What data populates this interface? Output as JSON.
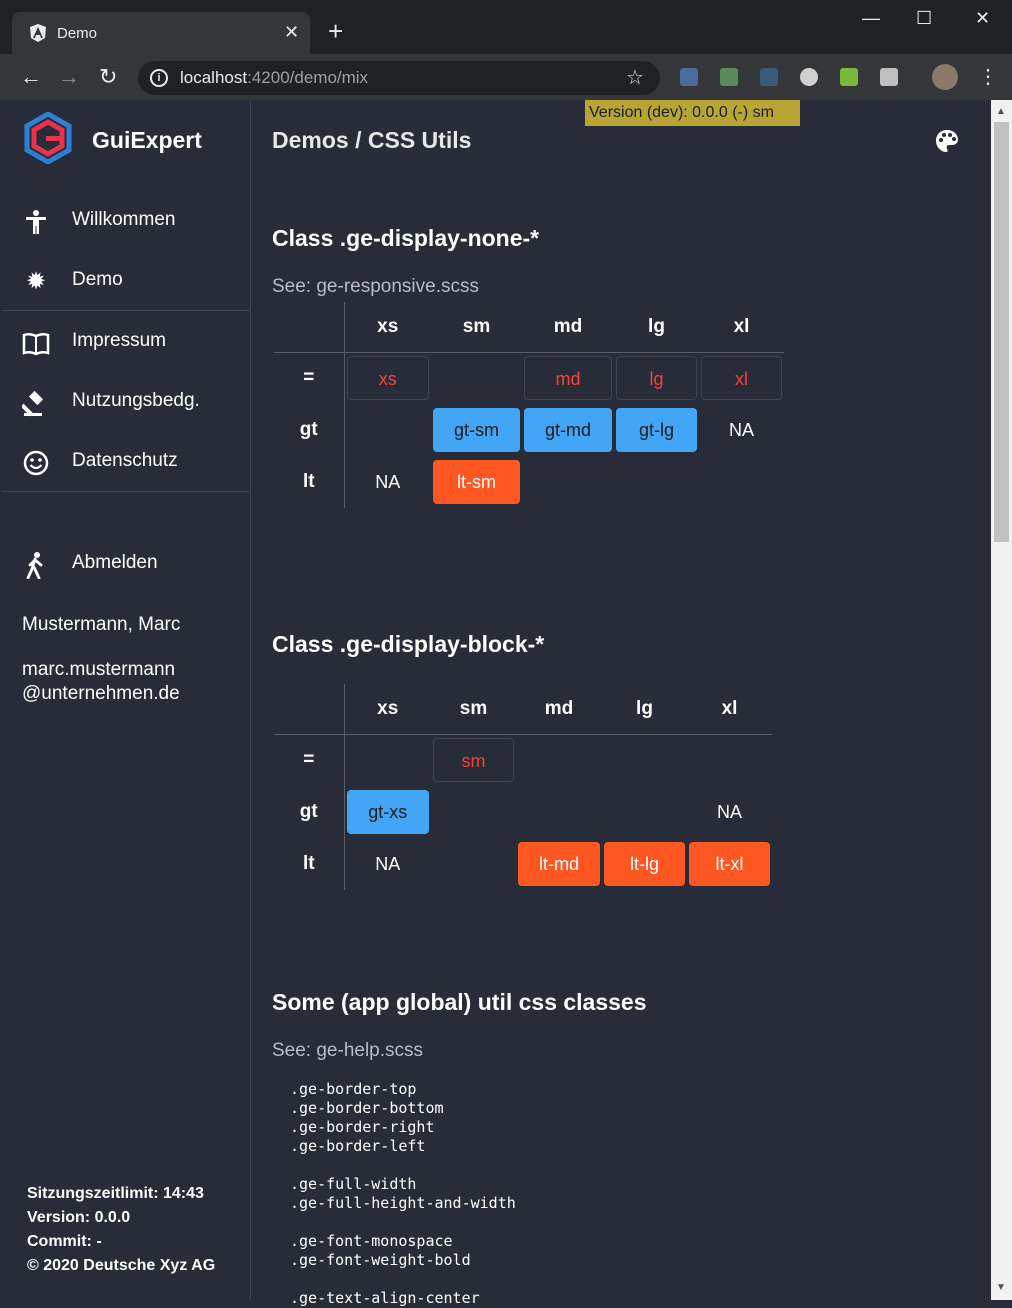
{
  "browser": {
    "tab_title": "Demo",
    "tab_close": "✕",
    "new_tab": "+",
    "url_host": "localhost",
    "url_path": ":4200/demo/mix",
    "minimize": "—",
    "maximize": "☐",
    "close": "✕"
  },
  "app": {
    "brand": "GuiExpert",
    "version_badge": "Version (dev): 0.0.0  (-)   sm",
    "page_title": "Demos / CSS Utils"
  },
  "sidebar": {
    "items": [
      {
        "label": "Willkommen",
        "icon": "accessibility-icon"
      },
      {
        "label": "Demo",
        "icon": "gear-icon"
      },
      {
        "label": "Impressum",
        "icon": "book-icon"
      },
      {
        "label": "Nutzungsbedg.",
        "icon": "gavel-icon"
      },
      {
        "label": "Datenschutz",
        "icon": "smiley-icon"
      },
      {
        "label": "Abmelden",
        "icon": "walk-icon"
      }
    ],
    "user_name": "Mustermann, Marc",
    "user_mail_1": "marc.mustermann",
    "user_mail_2": "@unternehmen.de",
    "footer": {
      "session": "Sitzungszeitlimit: 14:43",
      "version": "Version: 0.0.0",
      "commit": "Commit: -",
      "copyright": "© 2020 Deutsche Xyz AG"
    }
  },
  "section_none": {
    "title": "Class .ge-display-none-*",
    "see": "See: ge-responsive.scss",
    "headers": [
      "xs",
      "sm",
      "md",
      "lg",
      "xl"
    ],
    "rows": [
      {
        "label": "=",
        "cells": [
          {
            "t": "xs",
            "k": "eq"
          },
          {
            "t": "",
            "k": ""
          },
          {
            "t": "md",
            "k": "eq"
          },
          {
            "t": "lg",
            "k": "eq"
          },
          {
            "t": "xl",
            "k": "eq"
          }
        ]
      },
      {
        "label": "gt",
        "cells": [
          {
            "t": "",
            "k": ""
          },
          {
            "t": "gt-sm",
            "k": "gtc"
          },
          {
            "t": "gt-md",
            "k": "gtc"
          },
          {
            "t": "gt-lg",
            "k": "gtc"
          },
          {
            "t": "NA",
            "k": "na"
          }
        ]
      },
      {
        "label": "lt",
        "cells": [
          {
            "t": "NA",
            "k": "na"
          },
          {
            "t": "lt-sm",
            "k": "ltc"
          },
          {
            "t": "",
            "k": ""
          },
          {
            "t": "",
            "k": ""
          },
          {
            "t": "",
            "k": ""
          }
        ]
      }
    ]
  },
  "section_block": {
    "title": "Class .ge-display-block-*",
    "headers": [
      "xs",
      "sm",
      "md",
      "lg",
      "xl"
    ],
    "rows": [
      {
        "label": "=",
        "cells": [
          {
            "t": "",
            "k": ""
          },
          {
            "t": "sm",
            "k": "eq"
          },
          {
            "t": "",
            "k": ""
          },
          {
            "t": "",
            "k": ""
          },
          {
            "t": "",
            "k": ""
          }
        ]
      },
      {
        "label": "gt",
        "cells": [
          {
            "t": "gt-xs",
            "k": "gtc"
          },
          {
            "t": "",
            "k": ""
          },
          {
            "t": "",
            "k": ""
          },
          {
            "t": "",
            "k": ""
          },
          {
            "t": "NA",
            "k": "na"
          }
        ]
      },
      {
        "label": "lt",
        "cells": [
          {
            "t": "NA",
            "k": "na"
          },
          {
            "t": "",
            "k": ""
          },
          {
            "t": "lt-md",
            "k": "ltc"
          },
          {
            "t": "lt-lg",
            "k": "ltc"
          },
          {
            "t": "lt-xl",
            "k": "ltc"
          }
        ]
      }
    ]
  },
  "section_util": {
    "title": "Some (app global) util css classes",
    "see": "See: ge-help.scss",
    "code": ".ge-border-top\n.ge-border-bottom\n.ge-border-right\n.ge-border-left\n\n.ge-full-width\n.ge-full-height-and-width\n\n.ge-font-monospace\n.ge-font-weight-bold\n\n.ge-text-align-center"
  }
}
